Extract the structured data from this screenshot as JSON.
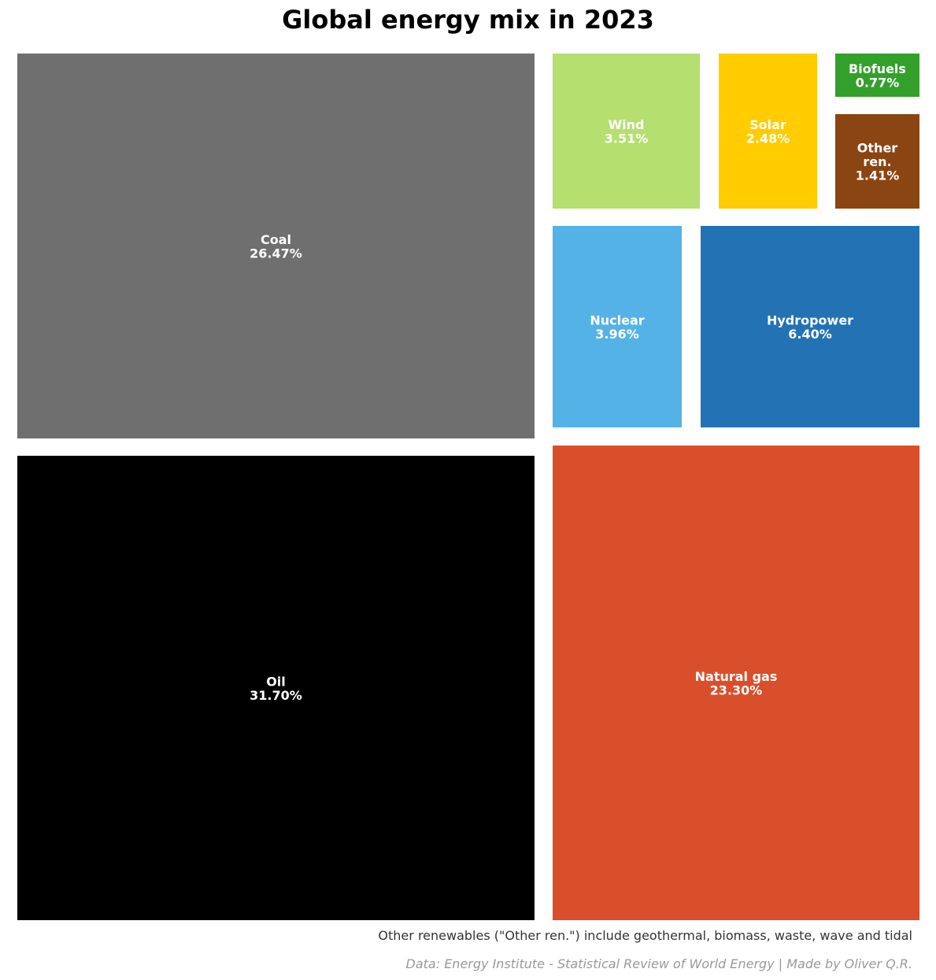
{
  "chart_data": {
    "type": "treemap",
    "title": "Global energy mix in 2023",
    "unit": "%",
    "items": [
      {
        "label": "Oil",
        "value": 31.7,
        "value_text": "31.70%",
        "color": "#000000"
      },
      {
        "label": "Coal",
        "value": 26.47,
        "value_text": "26.47%",
        "color": "#6f6f6f"
      },
      {
        "label": "Natural gas",
        "value": 23.3,
        "value_text": "23.30%",
        "color": "#d94f2c"
      },
      {
        "label": "Hydropower",
        "value": 6.4,
        "value_text": "6.40%",
        "color": "#2272b4"
      },
      {
        "label": "Nuclear",
        "value": 3.96,
        "value_text": "3.96%",
        "color": "#55b2e7"
      },
      {
        "label": "Wind",
        "value": 3.51,
        "value_text": "3.51%",
        "color": "#b5df6e"
      },
      {
        "label": "Solar",
        "value": 2.48,
        "value_text": "2.48%",
        "color": "#ffcc00"
      },
      {
        "label": "Other ren.",
        "label_lines": [
          "Other",
          "ren."
        ],
        "value": 1.41,
        "value_text": "1.41%",
        "color": "#8b4513"
      },
      {
        "label": "Biofuels",
        "value": 0.77,
        "value_text": "0.77%",
        "color": "#34a02c"
      }
    ],
    "footnote": "Other renewables (\"Other ren.\") include geothermal, biomass, waste, wave and tidal",
    "source": "Data: Energy Institute - Statistical Review of World Energy | Made by Oliver Q.R."
  }
}
